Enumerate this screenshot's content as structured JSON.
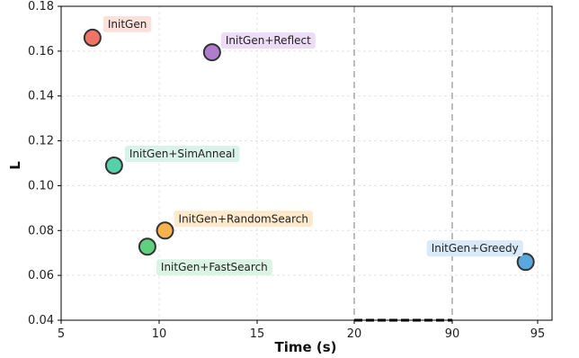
{
  "chart_data": {
    "type": "scatter",
    "xlabel": "Time (s)",
    "ylabel": "L",
    "ylim": [
      0.04,
      0.18
    ],
    "yticks": [
      "0.04",
      "0.06",
      "0.08",
      "0.10",
      "0.12",
      "0.14",
      "0.16",
      "0.18"
    ],
    "x_broken_axis": true,
    "x_segments": [
      {
        "range": [
          5,
          20
        ],
        "ticks": [
          "5",
          "10",
          "15",
          "20"
        ]
      },
      {
        "range": [
          90,
          95
        ],
        "ticks": [
          "90",
          "95"
        ]
      }
    ],
    "grid": true,
    "points": [
      {
        "label": "InitGen",
        "x": 6.6,
        "y": 0.166,
        "color": "#f07466",
        "label_bg": "#fbe0dc"
      },
      {
        "label": "InitGen+Reflect",
        "x": 12.7,
        "y": 0.1595,
        "color": "#b07cd0",
        "label_bg": "#ecdcf5"
      },
      {
        "label": "InitGen+SimAnneal",
        "x": 7.7,
        "y": 0.109,
        "color": "#56d0a8",
        "label_bg": "#d9f3ea"
      },
      {
        "label": "InitGen+RandomSearch",
        "x": 10.3,
        "y": 0.08,
        "color": "#f7b24e",
        "label_bg": "#fde9cc"
      },
      {
        "label": "InitGen+FastSearch",
        "x": 9.4,
        "y": 0.0728,
        "color": "#5fcf80",
        "label_bg": "#daf3e2"
      },
      {
        "label": "InitGen+Greedy",
        "x": 94.3,
        "y": 0.066,
        "color": "#5aa7e0",
        "label_bg": "#d8e9f8"
      }
    ]
  }
}
